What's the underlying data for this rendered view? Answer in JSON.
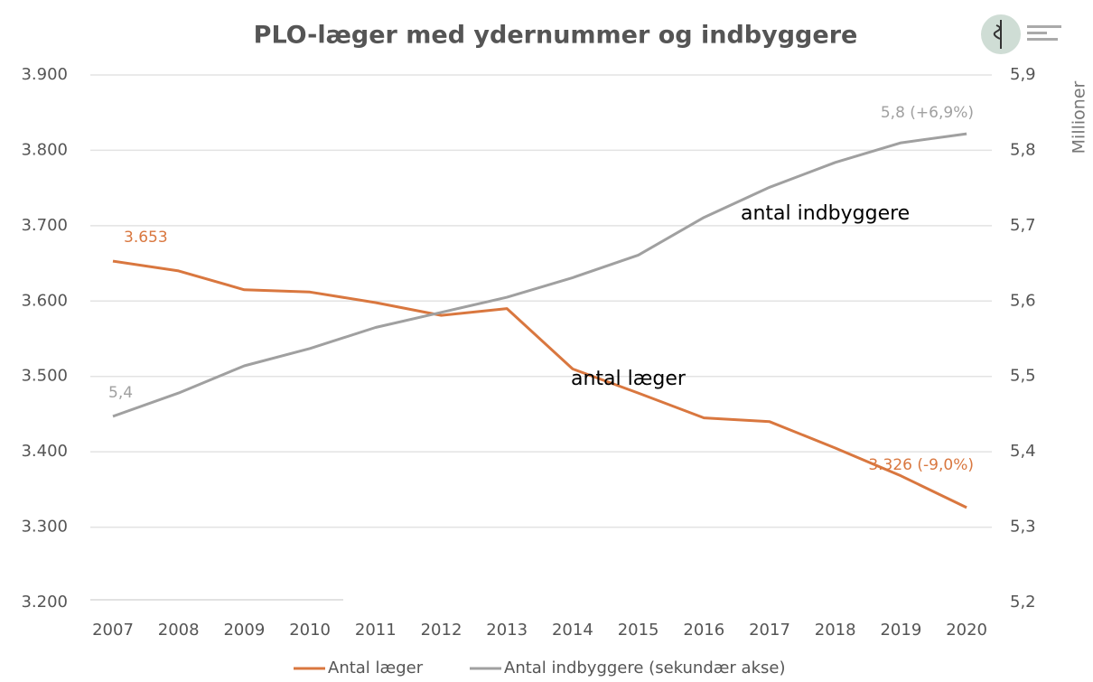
{
  "chart_data": {
    "type": "line",
    "title": "PLO-læger med ydernummer og indbyggere",
    "y2label": "Millioner",
    "categories": [
      "2007",
      "2008",
      "2009",
      "2010",
      "2011",
      "2012",
      "2013",
      "2014",
      "2015",
      "2016",
      "2017",
      "2018",
      "2019",
      "2020"
    ],
    "series": [
      {
        "name": "Antal læger",
        "color": "#d9773f",
        "values": [
          3653,
          3640,
          3615,
          3612,
          3598,
          3581,
          3590,
          3510,
          3478,
          3445,
          3440,
          3405,
          3368,
          3326
        ],
        "value_labels": [
          "3.653",
          null,
          null,
          null,
          null,
          null,
          null,
          null,
          null,
          null,
          null,
          null,
          null,
          "3.326 (-9,0%)"
        ]
      },
      {
        "name": "Antal indbyggere (sekundær akse)",
        "color": "#a0a0a0",
        "axis": "y2",
        "values": [
          5.447,
          5.478,
          5.514,
          5.537,
          5.565,
          5.585,
          5.605,
          5.631,
          5.661,
          5.711,
          5.751,
          5.784,
          5.81,
          5.822
        ],
        "value_labels": [
          "5,4",
          null,
          null,
          null,
          null,
          null,
          null,
          null,
          null,
          null,
          null,
          null,
          null,
          "5,8 (+6,9%)"
        ]
      }
    ],
    "annotations": [
      "antal indbyggere",
      "antal læger"
    ],
    "ylim": [
      3200,
      3900
    ],
    "yticks": [
      {
        "value": 3200,
        "label": "3.200"
      },
      {
        "value": 3300,
        "label": "3.300"
      },
      {
        "value": 3400,
        "label": "3.400"
      },
      {
        "value": 3500,
        "label": "3.500"
      },
      {
        "value": 3600,
        "label": "3.600"
      },
      {
        "value": 3700,
        "label": "3.700"
      },
      {
        "value": 3800,
        "label": "3.800"
      },
      {
        "value": 3900,
        "label": "3.900"
      }
    ],
    "y2lim": [
      5.2,
      5.9
    ],
    "y2ticks": [
      {
        "value": 5.2,
        "label": "5,2"
      },
      {
        "value": 5.3,
        "label": "5,3"
      },
      {
        "value": 5.4,
        "label": "5,4"
      },
      {
        "value": 5.5,
        "label": "5,5"
      },
      {
        "value": 5.6,
        "label": "5,6"
      },
      {
        "value": 5.7,
        "label": "5,7"
      },
      {
        "value": 5.8,
        "label": "5,8"
      },
      {
        "value": 5.9,
        "label": "5,9"
      }
    ],
    "grid": true,
    "legend": "bottom"
  }
}
